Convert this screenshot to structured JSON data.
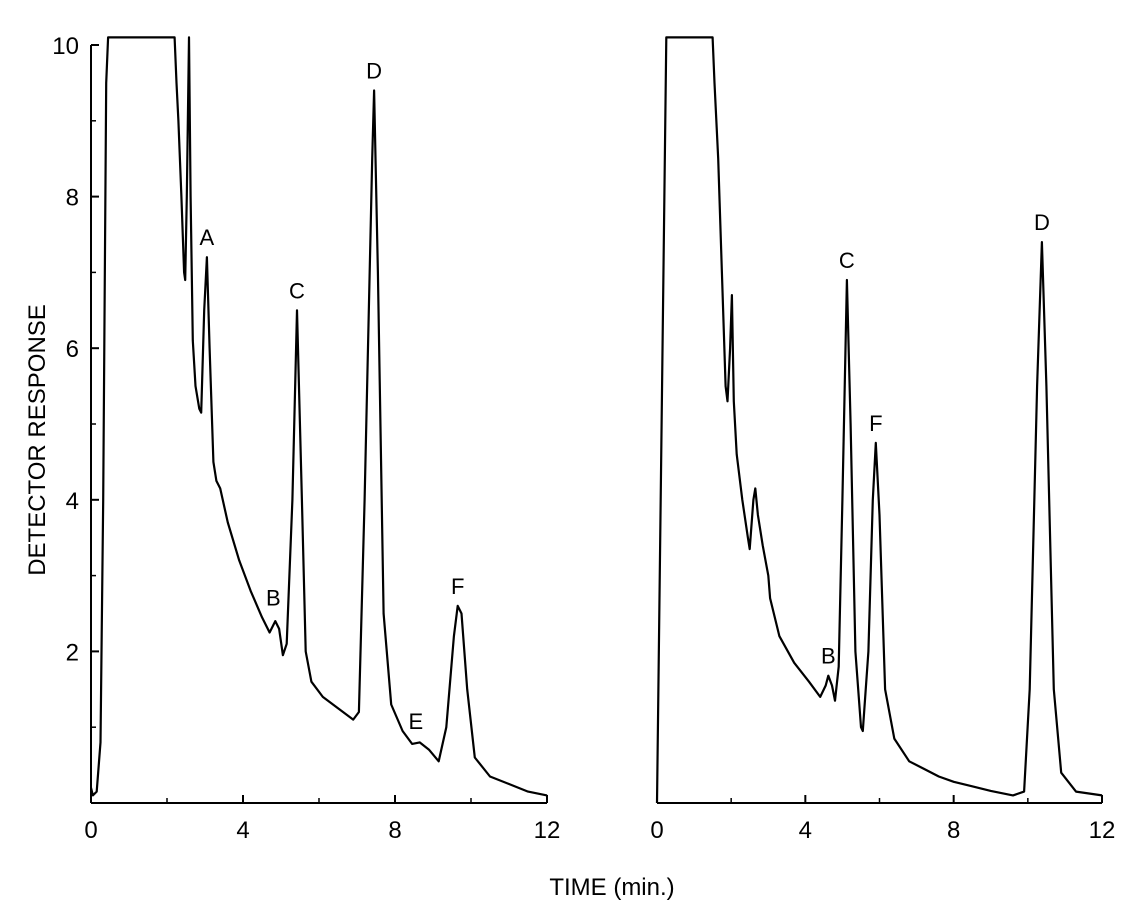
{
  "figure": {
    "xlabel": "TIME (min.)",
    "ylabel": "DETECTOR RESPONSE"
  },
  "chart_data": [
    {
      "type": "line",
      "xlabel": "TIME (min.)",
      "ylabel": "DETECTOR RESPONSE",
      "xlim": [
        0,
        12
      ],
      "ylim": [
        0,
        10
      ],
      "x_ticks": [
        "0",
        "4",
        "8",
        "12"
      ],
      "y_ticks": [
        "2",
        "4",
        "6",
        "8",
        "10"
      ],
      "series": [
        {
          "points": [
            [
              0,
              0.2
            ],
            [
              0.05,
              0.1
            ],
            [
              0.15,
              0.15
            ],
            [
              0.25,
              0.8
            ],
            [
              0.32,
              4
            ],
            [
              0.4,
              9.5
            ],
            [
              0.45,
              10.1
            ],
            [
              2.2,
              10.1
            ],
            [
              2.25,
              9.5
            ],
            [
              2.3,
              9.0
            ],
            [
              2.38,
              8.0
            ],
            [
              2.45,
              7.0
            ],
            [
              2.48,
              6.9
            ],
            [
              2.52,
              8.0
            ],
            [
              2.58,
              10.1
            ],
            [
              2.62,
              8.0
            ],
            [
              2.68,
              6.1
            ],
            [
              2.75,
              5.5
            ],
            [
              2.85,
              5.2
            ],
            [
              2.9,
              5.15
            ],
            [
              2.98,
              6.5
            ],
            [
              3.05,
              7.2
            ],
            [
              3.12,
              6.0
            ],
            [
              3.22,
              4.5
            ],
            [
              3.3,
              4.25
            ],
            [
              3.4,
              4.15
            ],
            [
              3.6,
              3.7
            ],
            [
              3.9,
              3.2
            ],
            [
              4.2,
              2.8
            ],
            [
              4.5,
              2.45
            ],
            [
              4.7,
              2.25
            ],
            [
              4.85,
              2.4
            ],
            [
              4.95,
              2.3
            ],
            [
              5.05,
              1.95
            ],
            [
              5.15,
              2.1
            ],
            [
              5.3,
              4.0
            ],
            [
              5.42,
              6.5
            ],
            [
              5.55,
              4.0
            ],
            [
              5.65,
              2.0
            ],
            [
              5.8,
              1.6
            ],
            [
              6.1,
              1.4
            ],
            [
              6.5,
              1.25
            ],
            [
              6.9,
              1.1
            ],
            [
              7.05,
              1.2
            ],
            [
              7.2,
              4.0
            ],
            [
              7.4,
              8.5
            ],
            [
              7.45,
              9.4
            ],
            [
              7.55,
              7.0
            ],
            [
              7.7,
              2.5
            ],
            [
              7.9,
              1.3
            ],
            [
              8.2,
              0.95
            ],
            [
              8.45,
              0.78
            ],
            [
              8.65,
              0.8
            ],
            [
              8.9,
              0.7
            ],
            [
              9.15,
              0.55
            ],
            [
              9.35,
              1.0
            ],
            [
              9.55,
              2.2
            ],
            [
              9.65,
              2.6
            ],
            [
              9.75,
              2.5
            ],
            [
              9.9,
              1.5
            ],
            [
              10.1,
              0.6
            ],
            [
              10.5,
              0.35
            ],
            [
              11,
              0.25
            ],
            [
              11.5,
              0.15
            ],
            [
              12,
              0.1
            ]
          ]
        }
      ],
      "annotations": [
        {
          "text": "A",
          "x": 3.05,
          "y": 7.2
        },
        {
          "text": "B",
          "x": 4.8,
          "y": 2.45
        },
        {
          "text": "C",
          "x": 5.42,
          "y": 6.5
        },
        {
          "text": "D",
          "x": 7.45,
          "y": 9.4
        },
        {
          "text": "E",
          "x": 8.55,
          "y": 0.82
        },
        {
          "text": "F",
          "x": 9.65,
          "y": 2.6
        }
      ]
    },
    {
      "type": "line",
      "xlabel": "TIME (min.)",
      "xlim": [
        0,
        12
      ],
      "ylim": [
        0,
        10
      ],
      "x_ticks": [
        "0",
        "4",
        "8",
        "12"
      ],
      "series": [
        {
          "points": [
            [
              0,
              0
            ],
            [
              0.25,
              10.1
            ],
            [
              1.5,
              10.1
            ],
            [
              1.55,
              9.5
            ],
            [
              1.65,
              8.5
            ],
            [
              1.75,
              7.0
            ],
            [
              1.85,
              5.5
            ],
            [
              1.9,
              5.3
            ],
            [
              1.97,
              6.0
            ],
            [
              2.02,
              6.7
            ],
            [
              2.07,
              5.3
            ],
            [
              2.15,
              4.6
            ],
            [
              2.3,
              4.0
            ],
            [
              2.45,
              3.5
            ],
            [
              2.5,
              3.35
            ],
            [
              2.6,
              4.0
            ],
            [
              2.65,
              4.15
            ],
            [
              2.72,
              3.8
            ],
            [
              2.85,
              3.4
            ],
            [
              3.0,
              3.0
            ],
            [
              3.05,
              2.7
            ],
            [
              3.3,
              2.2
            ],
            [
              3.7,
              1.85
            ],
            [
              4.1,
              1.6
            ],
            [
              4.4,
              1.4
            ],
            [
              4.55,
              1.55
            ],
            [
              4.62,
              1.68
            ],
            [
              4.72,
              1.55
            ],
            [
              4.8,
              1.35
            ],
            [
              4.9,
              1.8
            ],
            [
              5.0,
              4.0
            ],
            [
              5.12,
              6.9
            ],
            [
              5.22,
              5.0
            ],
            [
              5.35,
              2.0
            ],
            [
              5.5,
              1.0
            ],
            [
              5.55,
              0.95
            ],
            [
              5.7,
              2.0
            ],
            [
              5.82,
              4.0
            ],
            [
              5.9,
              4.75
            ],
            [
              6.0,
              3.8
            ],
            [
              6.15,
              1.5
            ],
            [
              6.4,
              0.85
            ],
            [
              6.8,
              0.55
            ],
            [
              7.2,
              0.45
            ],
            [
              7.6,
              0.35
            ],
            [
              8.0,
              0.28
            ],
            [
              8.5,
              0.22
            ],
            [
              9.0,
              0.16
            ],
            [
              9.6,
              0.1
            ],
            [
              9.9,
              0.15
            ],
            [
              10.05,
              1.5
            ],
            [
              10.25,
              5.5
            ],
            [
              10.38,
              7.4
            ],
            [
              10.5,
              5.5
            ],
            [
              10.7,
              1.5
            ],
            [
              10.9,
              0.4
            ],
            [
              11.3,
              0.15
            ],
            [
              12,
              0.1
            ]
          ]
        }
      ],
      "annotations": [
        {
          "text": "B",
          "x": 4.62,
          "y": 1.68
        },
        {
          "text": "C",
          "x": 5.12,
          "y": 6.9
        },
        {
          "text": "F",
          "x": 5.9,
          "y": 4.75
        },
        {
          "text": "D",
          "x": 10.38,
          "y": 7.4
        }
      ]
    }
  ]
}
